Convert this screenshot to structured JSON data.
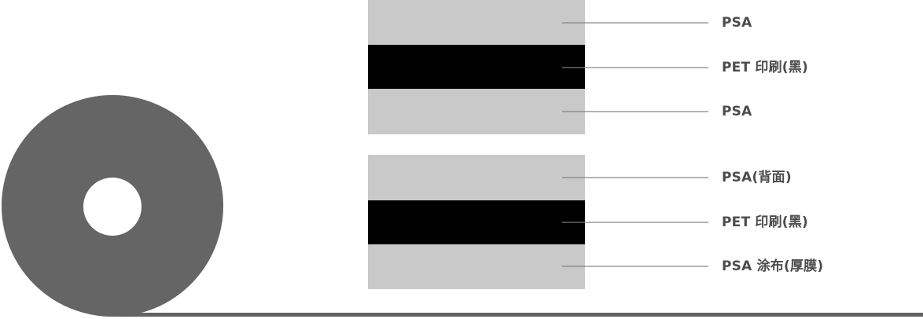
{
  "colors": {
    "roll": "#666565",
    "roll_hole": "#ffffff",
    "tape_line": "#636363",
    "layer_gray": "#c9c9c9",
    "layer_black": "#000000",
    "leader_line": "rgba(128,128,128,0.6)",
    "label_text": "#4c4c4c"
  },
  "stacks": [
    {
      "name": "top-structure",
      "layers": [
        {
          "label": "PSA",
          "color_key": "layer_gray"
        },
        {
          "label": "PET 印刷(黑)",
          "color_key": "layer_black"
        },
        {
          "label": "PSA",
          "color_key": "layer_gray"
        }
      ]
    },
    {
      "name": "bottom-structure",
      "layers": [
        {
          "label": "PSA(背面)",
          "color_key": "layer_gray"
        },
        {
          "label": "PET 印刷(黑)",
          "color_key": "layer_black"
        },
        {
          "label": "PSA 涂布(厚膜)",
          "color_key": "layer_gray"
        }
      ]
    }
  ]
}
